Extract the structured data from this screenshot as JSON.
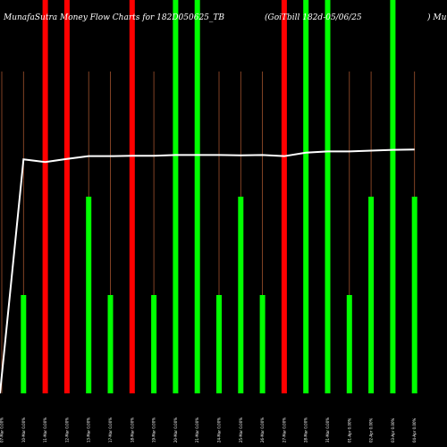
{
  "chart_data": {
    "type": "bar",
    "title_left": "MunafaSutra  Money Flow  Charts for 182D050625_TB",
    "title_mid": "(GoiTbill 182d-05/06/25",
    "title_right": ") MunafaSutra",
    "ylim": [
      0,
      100
    ],
    "categories": [
      "07-Mar 0.00%",
      "10-Mar 0.00%",
      "11-Mar 0.00%",
      "12-Mar 0.00%",
      "13-Mar 0.00%",
      "17-Mar 0.00%",
      "18-Mar 0.00%",
      "19-Mar 0.00%",
      "20-Mar 0.00%",
      "21-Mar 0.00%",
      "24-Mar 0.00%",
      "25-Mar 0.00%",
      "26-Mar 0.00%",
      "27-Mar 0.00%",
      "28-Mar 0.00%",
      "31-Mar 0.00%",
      "01-Apr 0.00%",
      "02-Apr 0.00%",
      "03-Apr 0.00%",
      "04-Apr 0.00%"
    ],
    "bars": [
      {
        "value": 25,
        "color": "#00ff00"
      },
      {
        "value": 100,
        "color": "#ff0000"
      },
      {
        "value": 100,
        "color": "#ff0000"
      },
      {
        "value": 50,
        "color": "#00ff00"
      },
      {
        "value": 25,
        "color": "#00ff00"
      },
      {
        "value": 100,
        "color": "#ff0000"
      },
      {
        "value": 25,
        "color": "#00ff00"
      },
      {
        "value": 100,
        "color": "#00ff00"
      },
      {
        "value": 100,
        "color": "#00ff00"
      },
      {
        "value": 25,
        "color": "#00ff00"
      },
      {
        "value": 50,
        "color": "#00ff00"
      },
      {
        "value": 25,
        "color": "#00ff00"
      },
      {
        "value": 100,
        "color": "#ff0000"
      },
      {
        "value": 100,
        "color": "#00ff00"
      },
      {
        "value": 100,
        "color": "#00ff00"
      },
      {
        "value": 25,
        "color": "#00ff00"
      },
      {
        "value": 50,
        "color": "#00ff00"
      },
      {
        "value": 100,
        "color": "#00ff00"
      },
      {
        "value": 50,
        "color": "#00ff00"
      }
    ],
    "bar_x_offset": 1,
    "line": {
      "color": "#ffffff",
      "values": [
        0,
        59.5,
        58.8,
        59.6,
        60.3,
        60.3,
        60.4,
        60.4,
        60.6,
        60.6,
        60.6,
        60.5,
        60.6,
        60.3,
        61.2,
        61.5,
        61.5,
        61.7,
        61.9,
        62.0
      ]
    },
    "stem_color": "#a0522d",
    "grid": false
  }
}
